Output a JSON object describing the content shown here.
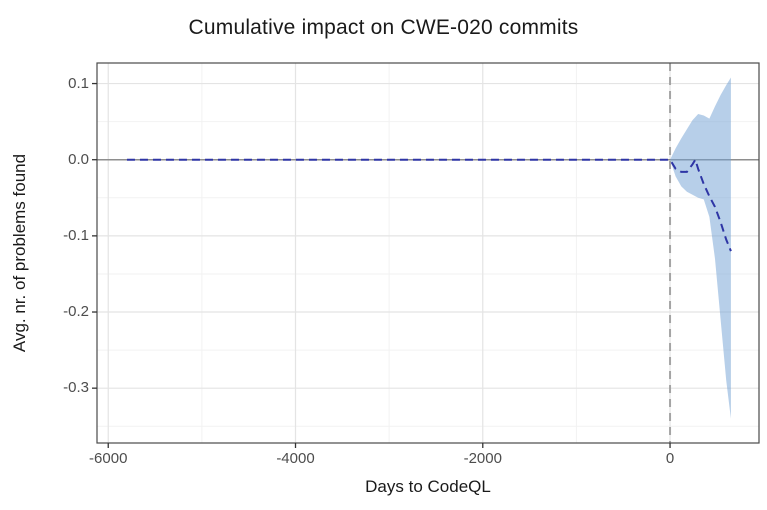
{
  "chart_data": {
    "type": "line",
    "title": "Cumulative impact on CWE-020 commits",
    "xlabel": "Days to CodeQL",
    "ylabel": "Avg. nr. of problems found",
    "xlim": [
      -6120,
      950
    ],
    "ylim": [
      -0.372,
      0.127
    ],
    "grid": true,
    "legend": "none",
    "x_ticks": [
      -6000,
      -4000,
      -2000,
      0
    ],
    "x_tick_labels": [
      "-6000",
      "-4000",
      "-2000",
      "0"
    ],
    "x_minor_ticks": [
      -5000,
      -3000,
      -1000
    ],
    "y_ticks": [
      0.1,
      0.0,
      -0.1,
      -0.2,
      -0.3
    ],
    "y_tick_labels": [
      "0.1",
      "0.0",
      "-0.1",
      "-0.2",
      "-0.3"
    ],
    "y_minor_ticks": [
      0.05,
      -0.05,
      -0.15,
      -0.25,
      -0.35
    ],
    "reference_lines": {
      "vline_x": 0,
      "hline_y": 0
    },
    "series": [
      {
        "name": "cumulative-effect",
        "style": "dashed",
        "x": [
          -5800,
          -5000,
          -4000,
          -3000,
          -2000,
          -1000,
          -500,
          0,
          60,
          120,
          180,
          240,
          270,
          300,
          360,
          420,
          480,
          540,
          600,
          650
        ],
        "y": [
          0,
          0,
          0,
          0,
          0,
          0,
          0,
          0,
          -0.012,
          -0.016,
          -0.016,
          -0.006,
          0.0,
          -0.012,
          -0.032,
          -0.048,
          -0.062,
          -0.082,
          -0.105,
          -0.12
        ]
      }
    ],
    "band": {
      "name": "confidence-interval",
      "x": [
        0,
        60,
        120,
        180,
        240,
        270,
        300,
        360,
        420,
        480,
        540,
        600,
        650
      ],
      "upper": [
        0,
        0.015,
        0.028,
        0.04,
        0.052,
        0.056,
        0.06,
        0.058,
        0.054,
        0.07,
        0.085,
        0.098,
        0.108
      ],
      "lower": [
        0,
        -0.022,
        -0.035,
        -0.042,
        -0.046,
        -0.048,
        -0.05,
        -0.052,
        -0.075,
        -0.13,
        -0.21,
        -0.29,
        -0.34
      ]
    }
  },
  "colors": {
    "line": "#2e35a5",
    "band": "#6f9fd3",
    "band_apparent": "#b7cfe9",
    "vline": "#a4a4a4",
    "hline": "#8e8e8e",
    "grid_major": "#e4e4e4",
    "grid_minor": "#f2f2f2",
    "panel_border": "#4a4a4a",
    "tick": "#333333",
    "tick_label": "#4d4d4d",
    "text": "#1a1a1a"
  }
}
